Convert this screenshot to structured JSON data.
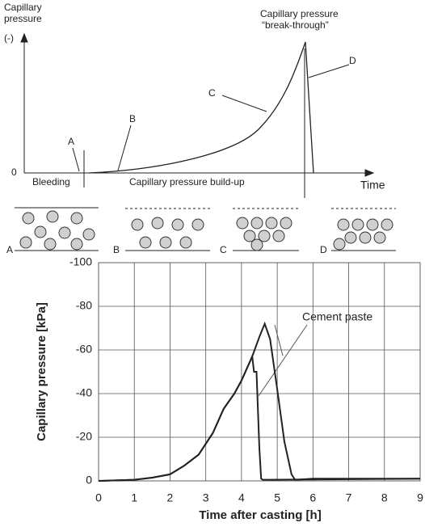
{
  "diagram": {
    "y_label": [
      "Capillary",
      "pressure"
    ],
    "y_unit": "(-)",
    "origin": "0",
    "x_label": "Time",
    "breakthrough": [
      "Capillary pressure",
      "“break-through”"
    ],
    "points": [
      "A",
      "B",
      "C",
      "D"
    ],
    "phases": [
      "Bleeding",
      "Capillary pressure build-up"
    ],
    "panels": [
      "A",
      "B",
      "C",
      "D"
    ]
  },
  "chart_data": {
    "type": "line",
    "xlabel": "Time after casting [h]",
    "ylabel": "Capillary pressure [kPa]",
    "annotation": "Cement paste",
    "xlim": [
      0,
      9
    ],
    "ylim": [
      0,
      -100
    ],
    "xticks": [
      0,
      1,
      2,
      3,
      4,
      5,
      6,
      7,
      8,
      9
    ],
    "yticks": [
      0,
      -20,
      -40,
      -60,
      -80,
      -100
    ],
    "grid": true,
    "series": [
      {
        "color": "#222222",
        "x": [
          0,
          1,
          1.5,
          2,
          2.4,
          2.8,
          3.2,
          3.5,
          3.8,
          4.0,
          4.3,
          4.5,
          4.65,
          4.8,
          5.0,
          5.2,
          5.4,
          5.5,
          6,
          9
        ],
        "values": [
          0,
          -0.5,
          -1.5,
          -3,
          -7,
          -12,
          -22,
          -33,
          -40,
          -46,
          -57,
          -66,
          -72,
          -65,
          -42,
          -18,
          -3,
          -0.5,
          -1,
          -1
        ]
      },
      {
        "color": "#222222",
        "x": [
          0,
          1,
          1.5,
          2,
          2.4,
          2.8,
          3.2,
          3.5,
          3.8,
          4.0,
          4.3,
          4.35,
          4.42,
          4.5,
          4.55,
          4.6,
          9
        ],
        "values": [
          0,
          -0.5,
          -1.5,
          -3,
          -7,
          -12,
          -22,
          -33,
          -40,
          -46,
          -57,
          -50,
          -50,
          -15,
          -1,
          -0.5,
          -1
        ]
      }
    ]
  }
}
